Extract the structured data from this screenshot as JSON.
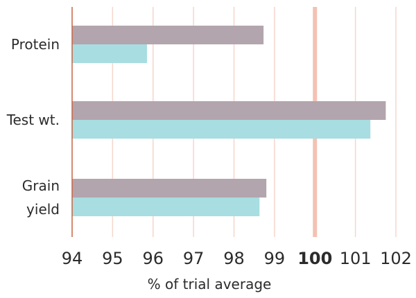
{
  "chart_data": {
    "type": "bar",
    "orientation": "horizontal",
    "categories": [
      {
        "lines": [
          "Protein"
        ]
      },
      {
        "lines": [
          "Test wt."
        ]
      },
      {
        "lines": [
          "Grain",
          "yield"
        ]
      }
    ],
    "series": [
      {
        "color": "#b3a5ad",
        "values": [
          98.73,
          101.75,
          98.8
        ]
      },
      {
        "color": "#a8dde1",
        "values": [
          95.85,
          101.37,
          98.63
        ]
      }
    ],
    "xlim": [
      94,
      102
    ],
    "xticks": [
      94,
      95,
      96,
      97,
      98,
      99,
      100,
      101,
      102
    ],
    "emphasized_tick": 100,
    "reference_line": {
      "value": 100,
      "color": "#f4c1b2"
    },
    "xlabel": "% of trial average",
    "ylabel": "",
    "title": "",
    "grid": true,
    "grid_color": "#f6d6cc",
    "axis_line_color": "#c9633f"
  }
}
